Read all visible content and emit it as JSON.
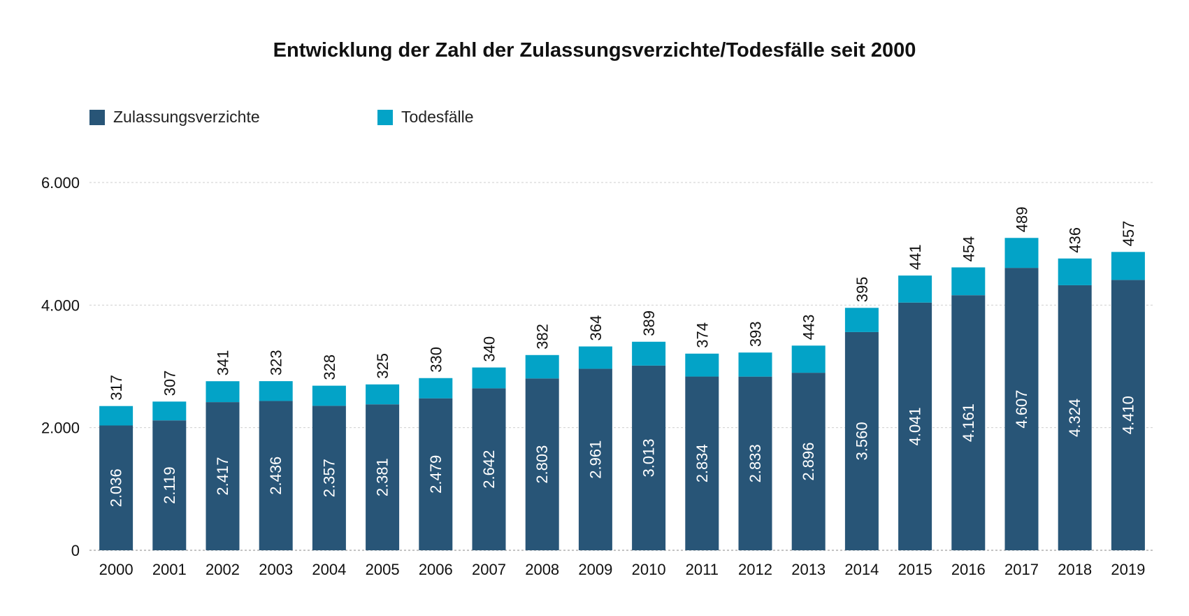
{
  "chart_data": {
    "type": "bar",
    "stacked": true,
    "title": "Entwicklung der Zahl der Zulassungsverzichte/Todesfälle seit 2000",
    "categories": [
      "2000",
      "2001",
      "2002",
      "2003",
      "2004",
      "2005",
      "2006",
      "2007",
      "2008",
      "2009",
      "2010",
      "2011",
      "2012",
      "2013",
      "2014",
      "2015",
      "2016",
      "2017",
      "2018",
      "2019"
    ],
    "series": [
      {
        "name": "Zulassungsverzichte",
        "color": "#285577",
        "values": [
          2036,
          2119,
          2417,
          2436,
          2357,
          2381,
          2479,
          2642,
          2803,
          2961,
          3013,
          2834,
          2833,
          2896,
          3560,
          4041,
          4161,
          4607,
          4324,
          4410
        ],
        "labels": [
          "2.036",
          "2.119",
          "2.417",
          "2.436",
          "2.357",
          "2.381",
          "2.479",
          "2.642",
          "2.803",
          "2.961",
          "3.013",
          "2.834",
          "2.833",
          "2.896",
          "3.560",
          "4.041",
          "4.161",
          "4.607",
          "4.324",
          "4.410"
        ]
      },
      {
        "name": "Todesfälle",
        "color": "#03A3C7",
        "values": [
          317,
          307,
          341,
          323,
          328,
          325,
          330,
          340,
          382,
          364,
          389,
          374,
          393,
          443,
          395,
          441,
          454,
          489,
          436,
          457
        ],
        "labels": [
          "317",
          "307",
          "341",
          "323",
          "328",
          "325",
          "330",
          "340",
          "382",
          "364",
          "389",
          "374",
          "393",
          "443",
          "395",
          "441",
          "454",
          "489",
          "436",
          "457"
        ]
      }
    ],
    "ylim": [
      0,
      6000
    ],
    "yticks": [
      0,
      2000,
      4000,
      6000
    ],
    "ytick_labels": [
      "0",
      "2.000",
      "4.000",
      "6.000"
    ],
    "grid": true,
    "legend_position": "top-left",
    "xlabel": "",
    "ylabel": ""
  }
}
